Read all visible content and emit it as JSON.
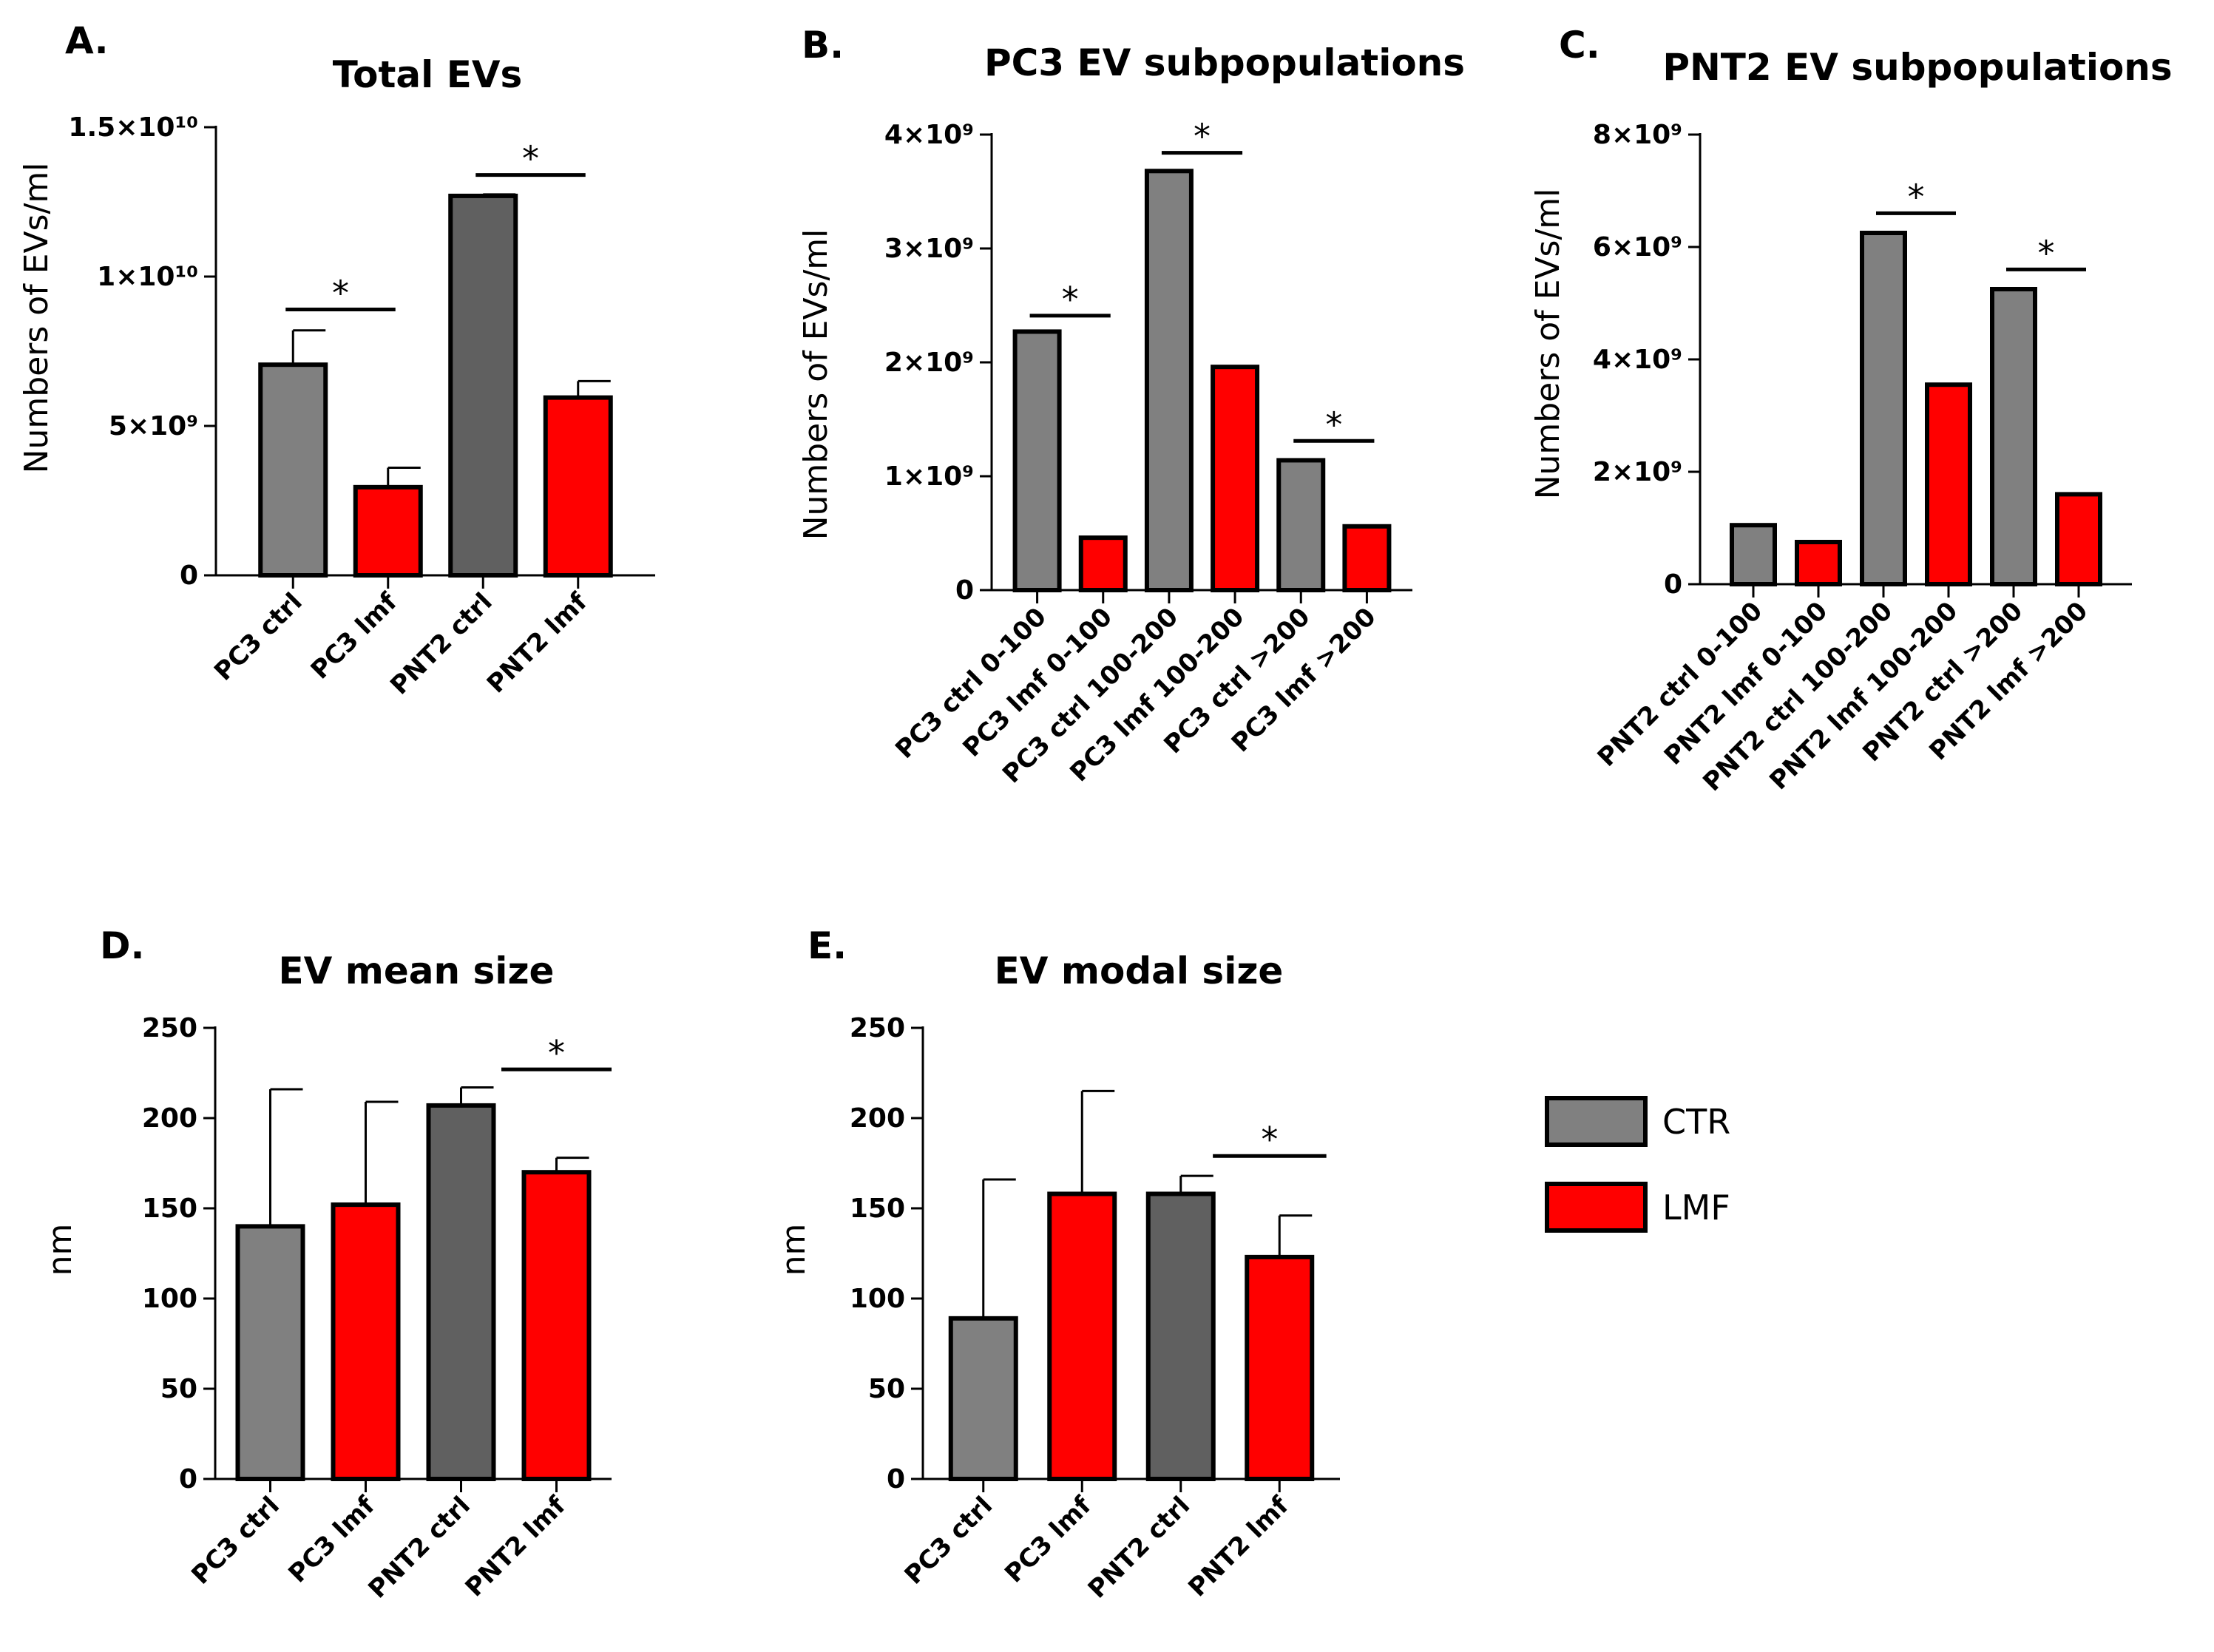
{
  "colors": {
    "ctrl_light": "#808080",
    "ctrl_dark": "#606060",
    "lmf": "#ff0000",
    "axis": "#000000"
  },
  "legend": {
    "items": [
      {
        "label": "CTR",
        "color": "#808080"
      },
      {
        "label": "LMF",
        "color": "#ff0000"
      }
    ]
  },
  "chart_data": [
    {
      "id": "A",
      "letter": "A.",
      "type": "bar",
      "title": "Total EVs",
      "ylabel": "Numbers of EVs/ml",
      "ylim": [
        0,
        15000000000.0
      ],
      "yticks": [
        {
          "v": 0,
          "text": "0"
        },
        {
          "v": 5000000000.0,
          "text": "5×10⁹"
        },
        {
          "v": 10000000000.0,
          "text": "1×10¹⁰"
        },
        {
          "v": 15000000000.0,
          "text": "1.5×10¹⁰"
        }
      ],
      "categories": [
        "PC3 ctrl",
        "PC3 lmf",
        "PNT2 ctrl",
        "PNT2 lmf"
      ],
      "values": [
        7050000000.0,
        2950000000.0,
        12700000000.0,
        5950000000.0
      ],
      "errors": [
        1150000000.0,
        650000000.0,
        50000000.0,
        550000000.0
      ],
      "colors": [
        "#808080",
        "#ff0000",
        "#606060",
        "#ff0000"
      ],
      "significance": [
        {
          "from": 0,
          "to": 1,
          "level": 8900000000.0,
          "label": "*"
        },
        {
          "from": 2,
          "to": 3,
          "level": 13400000000.0,
          "label": "*"
        }
      ]
    },
    {
      "id": "B",
      "letter": "B.",
      "type": "bar",
      "title": "PC3 EV subpopulations",
      "ylabel": "Numbers of EVs/ml",
      "ylim": [
        0,
        4000000000.0
      ],
      "yticks": [
        {
          "v": 0,
          "text": "0"
        },
        {
          "v": 1000000000.0,
          "text": "1×10⁹"
        },
        {
          "v": 2000000000.0,
          "text": "2×10⁹"
        },
        {
          "v": 3000000000.0,
          "text": "3×10⁹"
        },
        {
          "v": 4000000000.0,
          "text": "4×10⁹"
        }
      ],
      "categories": [
        "PC3 ctrl 0-100",
        "PC3 lmf 0-100",
        "PC3 ctrl 100-200",
        "PC3 lmf 100-200",
        "PC3 ctrl >200",
        "PC3 lmf >200"
      ],
      "values": [
        2270000000.0,
        460000000.0,
        3680000000.0,
        1960000000.0,
        1140000000.0,
        560000000.0
      ],
      "errors": [
        0,
        0,
        0,
        0,
        0,
        0
      ],
      "colors": [
        "#808080",
        "#ff0000",
        "#808080",
        "#ff0000",
        "#808080",
        "#ff0000"
      ],
      "significance": [
        {
          "from": 0,
          "to": 1,
          "level": 2410000000.0,
          "label": "*"
        },
        {
          "from": 2,
          "to": 3,
          "level": 3840000000.0,
          "label": "*"
        },
        {
          "from": 4,
          "to": 5,
          "level": 1310000000.0,
          "label": "*"
        }
      ]
    },
    {
      "id": "C",
      "letter": "C.",
      "type": "bar",
      "title": "PNT2 EV subpopulations",
      "ylabel": "Numbers of EVs/ml",
      "ylim": [
        0,
        8000000000.0
      ],
      "yticks": [
        {
          "v": 0,
          "text": "0"
        },
        {
          "v": 2000000000.0,
          "text": "2×10⁹"
        },
        {
          "v": 4000000000.0,
          "text": "4×10⁹"
        },
        {
          "v": 6000000000.0,
          "text": "6×10⁹"
        },
        {
          "v": 8000000000.0,
          "text": "8×10⁹"
        }
      ],
      "categories": [
        "PNT2 ctrl 0-100",
        "PNT2 lmf 0-100",
        "PNT2 ctrl 100-200",
        "PNT2 lmf 100-200",
        "PNT2 ctrl >200",
        "PNT2 lmf >200"
      ],
      "values": [
        1050000000.0,
        750000000.0,
        6250000000.0,
        3550000000.0,
        5250000000.0,
        1600000000.0
      ],
      "errors": [
        0,
        0,
        0,
        0,
        0,
        0
      ],
      "colors": [
        "#808080",
        "#ff0000",
        "#808080",
        "#ff0000",
        "#808080",
        "#ff0000"
      ],
      "significance": [
        {
          "from": 2,
          "to": 3,
          "level": 6600000000.0,
          "label": "*"
        },
        {
          "from": 4,
          "to": 5,
          "level": 5600000000.0,
          "label": "*"
        }
      ]
    },
    {
      "id": "D",
      "letter": "D.",
      "type": "bar",
      "title": "EV mean size",
      "ylabel": "nm",
      "ylim": [
        0,
        250
      ],
      "yticks": [
        {
          "v": 0,
          "text": "0"
        },
        {
          "v": 50,
          "text": "50"
        },
        {
          "v": 100,
          "text": "100"
        },
        {
          "v": 150,
          "text": "150"
        },
        {
          "v": 200,
          "text": "200"
        },
        {
          "v": 250,
          "text": "250"
        }
      ],
      "categories": [
        "PC3 ctrl",
        "PC3 lmf",
        "PNT2 ctrl",
        "PNT2 lmf"
      ],
      "values": [
        140,
        152,
        207,
        170
      ],
      "errors": [
        76,
        57,
        10,
        8
      ],
      "colors": [
        "#808080",
        "#ff0000",
        "#606060",
        "#ff0000"
      ],
      "significance": [
        {
          "from": 2.5,
          "to": 3.5,
          "level": 227,
          "label": "*"
        }
      ]
    },
    {
      "id": "E",
      "letter": "E.",
      "type": "bar",
      "title": "EV modal size",
      "ylabel": "nm",
      "ylim": [
        0,
        250
      ],
      "yticks": [
        {
          "v": 0,
          "text": "0"
        },
        {
          "v": 50,
          "text": "50"
        },
        {
          "v": 100,
          "text": "100"
        },
        {
          "v": 150,
          "text": "150"
        },
        {
          "v": 200,
          "text": "200"
        },
        {
          "v": 250,
          "text": "250"
        }
      ],
      "categories": [
        "PC3 ctrl",
        "PC3 lmf",
        "PNT2 ctrl",
        "PNT2 lmf"
      ],
      "values": [
        89,
        158,
        158,
        123
      ],
      "errors": [
        77,
        57,
        10,
        23
      ],
      "colors": [
        "#808080",
        "#ff0000",
        "#606060",
        "#ff0000"
      ],
      "significance": [
        {
          "from": 2.4,
          "to": 3.4,
          "level": 179,
          "label": "*"
        }
      ]
    }
  ]
}
